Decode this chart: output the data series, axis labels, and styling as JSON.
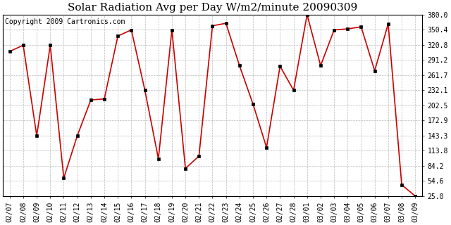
{
  "title": "Solar Radiation Avg per Day W/m2/minute 20090309",
  "copyright": "Copyright 2009 Cartronics.com",
  "dates": [
    "02/07",
    "02/08",
    "02/09",
    "02/10",
    "02/11",
    "02/12",
    "02/13",
    "02/14",
    "02/15",
    "02/16",
    "02/17",
    "02/18",
    "02/19",
    "02/20",
    "02/21",
    "02/22",
    "02/23",
    "02/24",
    "02/25",
    "02/26",
    "02/27",
    "02/28",
    "03/01",
    "03/02",
    "03/03",
    "03/04",
    "03/05",
    "03/06",
    "03/07",
    "03/08",
    "03/09"
  ],
  "values": [
    308.0,
    320.0,
    143.0,
    320.0,
    60.0,
    143.0,
    213.0,
    215.0,
    338.0,
    350.0,
    232.0,
    98.0,
    350.0,
    79.0,
    103.0,
    358.0,
    363.0,
    280.0,
    205.0,
    120.0,
    279.0,
    232.0,
    380.0,
    280.0,
    350.0,
    352.0,
    356.0,
    270.0,
    362.0,
    47.0,
    25.0
  ],
  "yticks": [
    25.0,
    54.6,
    84.2,
    113.8,
    143.3,
    172.9,
    202.5,
    232.1,
    261.7,
    291.2,
    320.8,
    350.4,
    380.0
  ],
  "ytick_labels": [
    "25.0",
    "54.6",
    "84.2",
    "113.8",
    "143.3",
    "172.9",
    "202.5",
    "232.1",
    "261.7",
    "291.2",
    "320.8",
    "350.4",
    "380.0"
  ],
  "line_color": "#cc0000",
  "marker_color": "#000000",
  "marker_size": 3,
  "bg_color": "#ffffff",
  "grid_color": "#bbbbbb",
  "title_fontsize": 11,
  "copyright_fontsize": 7,
  "tick_fontsize": 7,
  "ymin": 25.0,
  "ymax": 380.0
}
